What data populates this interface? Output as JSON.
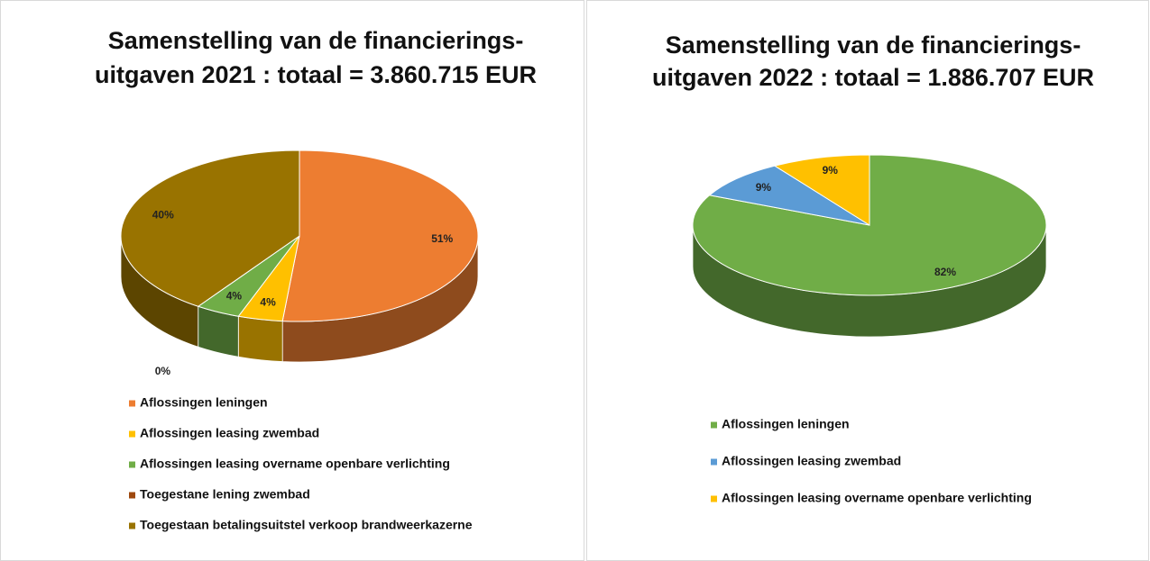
{
  "chart_data": [
    {
      "type": "pie",
      "title": [
        "Samenstelling van de financierings-",
        "uitgaven 2021 : totaal = 3.860.715 EUR"
      ],
      "categories": [
        "Aflossingen leningen",
        "Aflossingen leasing zwembad",
        "Aflossingen leasing overname openbare verlichting",
        "Toegestane lening zwembad",
        "Toegestaan betalingsuitstel verkoop brandweerkazerne"
      ],
      "values": [
        51,
        4,
        4,
        0,
        40
      ],
      "value_labels": [
        "51%",
        "4%",
        "4%",
        "0%",
        "40%"
      ],
      "colors": [
        "#ED7D31",
        "#FFC000",
        "#70AD47",
        "#9E480E",
        "#997300"
      ],
      "legend": "bottom"
    },
    {
      "type": "pie",
      "title": [
        "Samenstelling van de financierings-",
        "uitgaven 2022 : totaal = 1.886.707 EUR"
      ],
      "categories": [
        "Aflossingen leningen",
        "Aflossingen leasing zwembad",
        "Aflossingen leasing overname openbare verlichting"
      ],
      "values": [
        82,
        9,
        9
      ],
      "value_labels": [
        "82%",
        "9%",
        "9%"
      ],
      "colors": [
        "#70AD47",
        "#5B9BD5",
        "#FFC000"
      ],
      "legend": "bottom"
    }
  ]
}
